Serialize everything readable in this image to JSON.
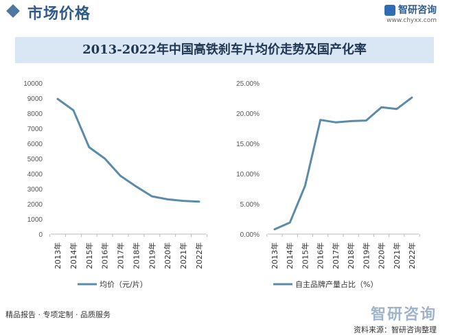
{
  "header": {
    "title": "市场价格",
    "brand_name": "智研咨询",
    "brand_url": "www.chyxx.com"
  },
  "colors": {
    "line": "#5a8caa",
    "band": "#d9e7f5",
    "title_blue": "#2e5b8c"
  },
  "chart_data": [
    {
      "type": "line",
      "title": "2013-2022年中国高铁刹车片均价走势及国产化率",
      "x": [
        "2013年",
        "2014年",
        "2015年",
        "2016年",
        "2017年",
        "2018年",
        "2019年",
        "2020年",
        "2021年",
        "2022年"
      ],
      "series": [
        {
          "name": "均价（元/片）",
          "values": [
            8950,
            8200,
            5750,
            5000,
            3850,
            3150,
            2500,
            2300,
            2200,
            2150
          ]
        }
      ],
      "ylim": [
        0,
        10000
      ],
      "yticks": [
        "0",
        "1000",
        "2000",
        "3000",
        "4000",
        "5000",
        "6000",
        "7000",
        "8000",
        "9000",
        "10000"
      ],
      "grid": false,
      "legend": "bottom"
    },
    {
      "type": "line",
      "x": [
        "2013年",
        "2014年",
        "2015年",
        "2016年",
        "2017年",
        "2018年",
        "2019年",
        "2020年",
        "2021年",
        "2022年"
      ],
      "series": [
        {
          "name": "自主品牌产量占比（%）",
          "values": [
            0.8,
            1.9,
            8.0,
            18.9,
            18.5,
            18.7,
            18.8,
            21.0,
            20.7,
            22.6
          ]
        }
      ],
      "ylim": [
        0,
        25
      ],
      "yticks": [
        "0.00%",
        "5.00%",
        "10.00%",
        "15.00%",
        "20.00%",
        "25.00%"
      ],
      "grid": false,
      "legend": "bottom"
    }
  ],
  "footer": {
    "left_text": "精品报告 · 专项定制 · 品质服务",
    "right_big": "智研咨询",
    "right_text": "资料来源：智研咨询整理"
  }
}
